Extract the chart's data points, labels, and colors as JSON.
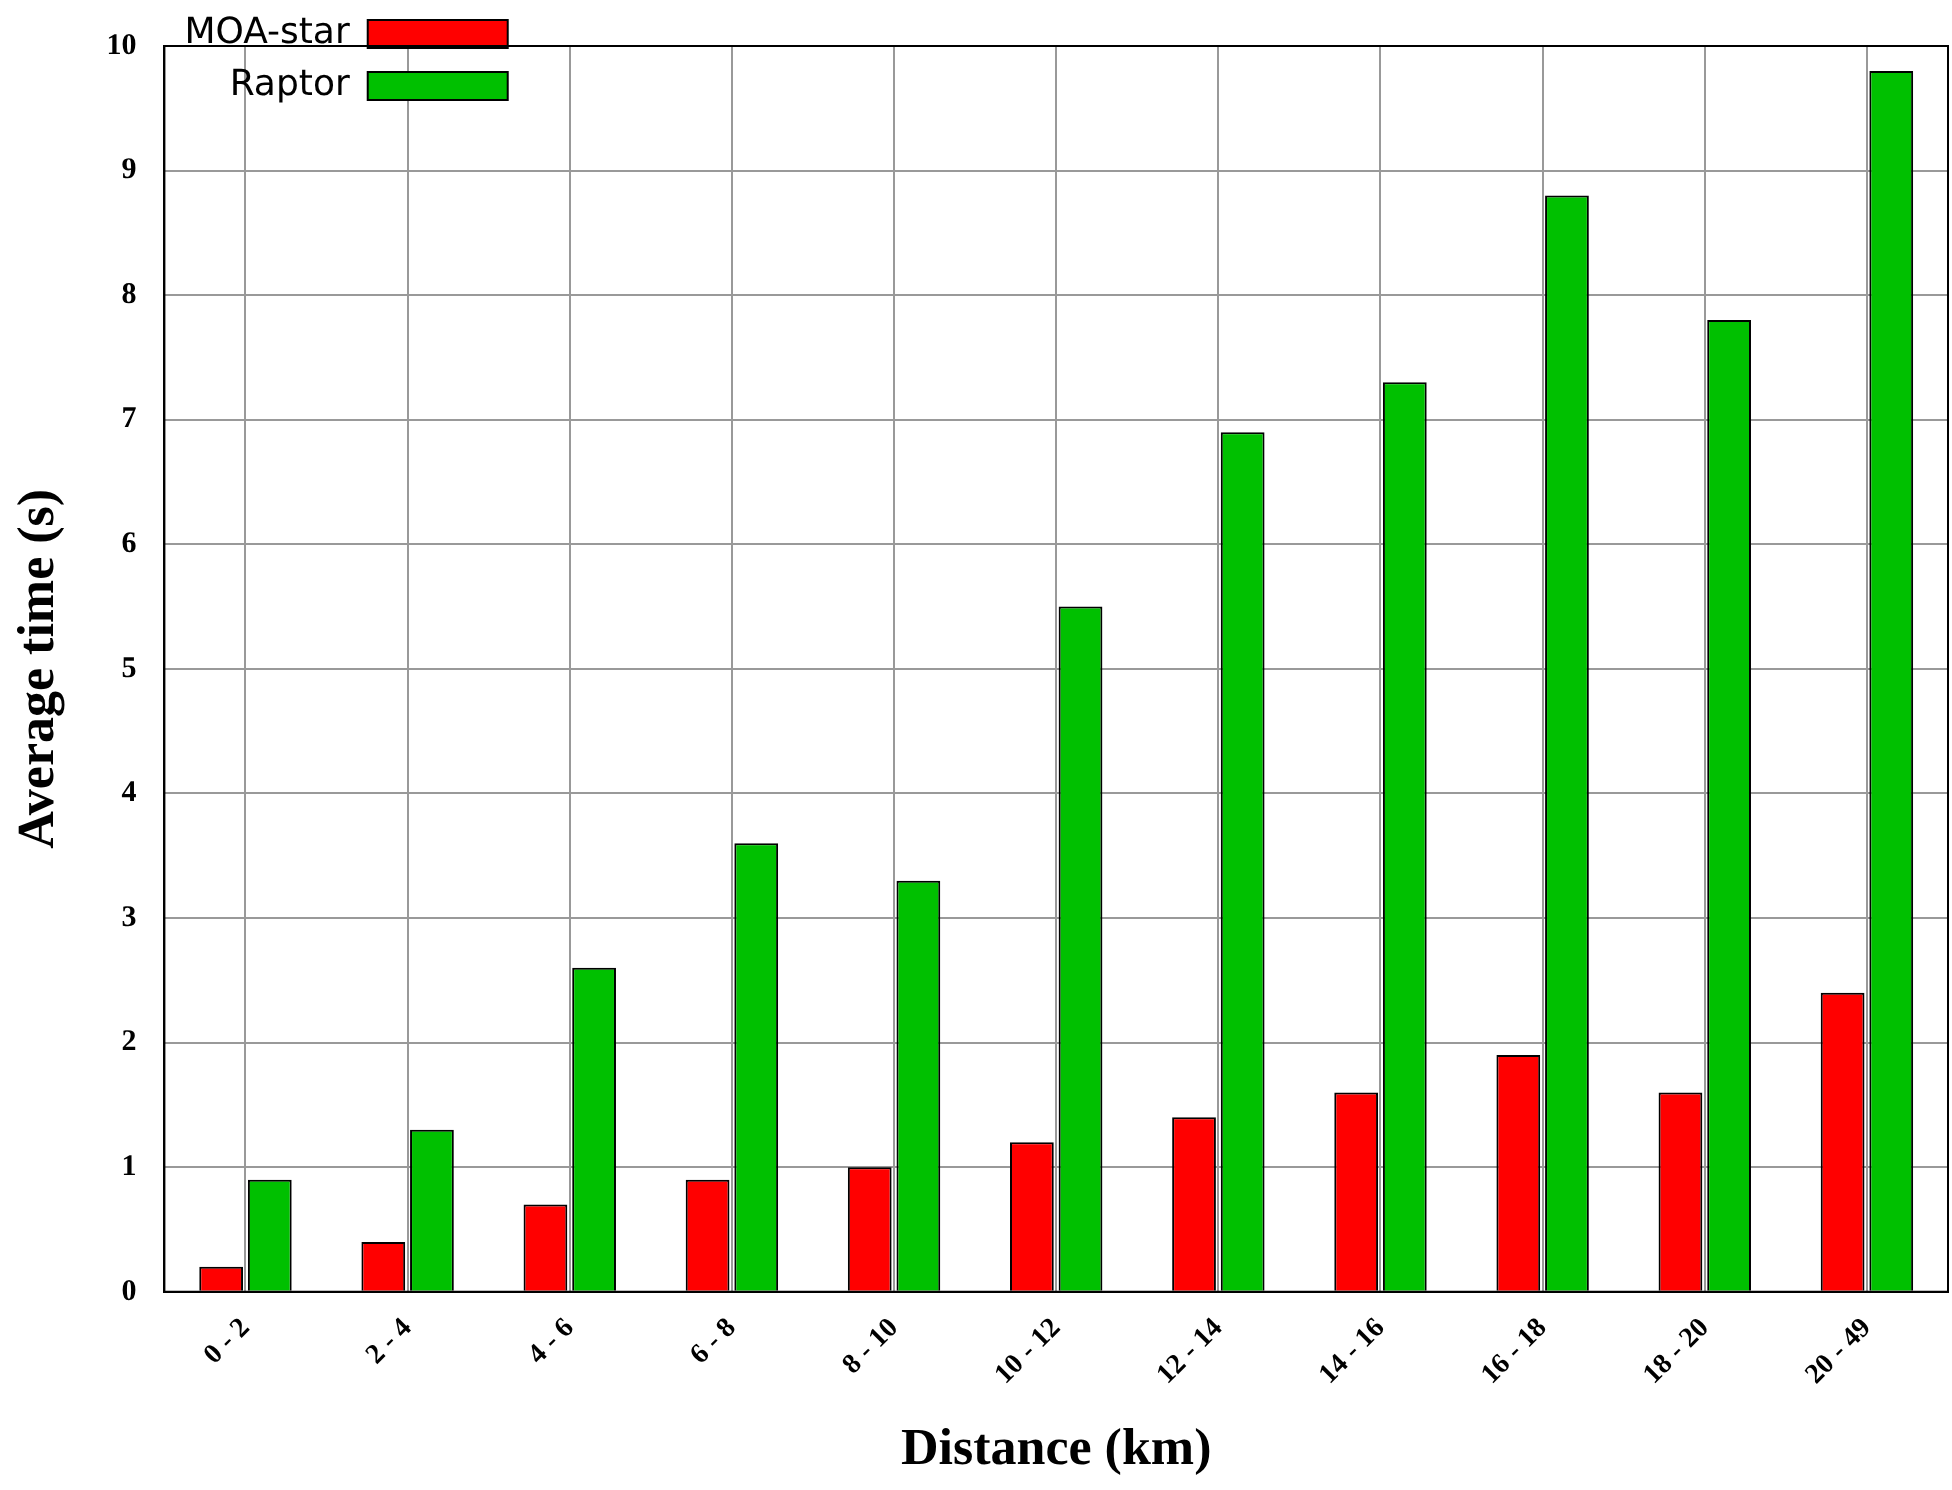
{
  "chart_data": {
    "type": "bar",
    "xlabel": "Distance (km)",
    "ylabel": "Average time (s)",
    "categories": [
      "0 - 2",
      "2 - 4",
      "4 - 6",
      "6 - 8",
      "8 - 10",
      "10 - 12",
      "12 - 14",
      "14 - 16",
      "16 - 18",
      "18 - 20",
      "20 - 49"
    ],
    "series": [
      {
        "name": "MOA-star",
        "color": "#ff0000",
        "values": [
          0.2,
          0.4,
          0.7,
          0.9,
          1.0,
          1.2,
          1.4,
          1.6,
          1.9,
          1.6,
          2.4
        ]
      },
      {
        "name": "Raptor",
        "color": "#00c000",
        "values": [
          0.9,
          1.3,
          2.6,
          3.6,
          3.3,
          5.5,
          6.9,
          7.3,
          8.8,
          7.8,
          9.8
        ]
      }
    ],
    "ylim": [
      0,
      10
    ],
    "yticks": [
      0,
      1,
      2,
      3,
      4,
      5,
      6,
      7,
      8,
      9,
      10
    ],
    "grid": true,
    "legend": "top left"
  }
}
